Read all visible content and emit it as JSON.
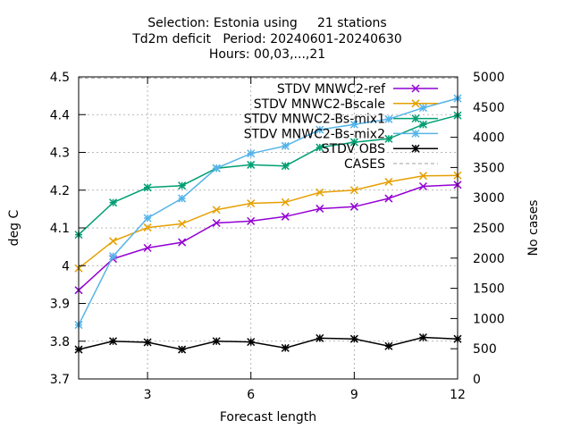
{
  "chart_data": {
    "type": "line",
    "title_lines": [
      "Selection: Estonia using     21 stations",
      "Td2m deficit   Period: 20240601-20240630",
      "Hours: 00,03,...,21"
    ],
    "xlabel": "Forecast length",
    "ylabel": "deg C",
    "y2label": "No cases",
    "xlim": [
      1,
      12
    ],
    "ylim": [
      3.7,
      4.5
    ],
    "y2lim": [
      0,
      5000
    ],
    "x_ticks": [
      3,
      6,
      9,
      12
    ],
    "y_ticks": [
      3.7,
      3.8,
      3.9,
      4,
      4.1,
      4.2,
      4.3,
      4.4,
      4.5
    ],
    "y_tick_labels": [
      "3.7",
      "3.8",
      "3.9",
      "4",
      "4.1",
      "4.2",
      "4.3",
      "4.4",
      "4.5"
    ],
    "y2_ticks": [
      0,
      500,
      1000,
      1500,
      2000,
      2500,
      3000,
      3500,
      4000,
      4500,
      5000
    ],
    "grid": true,
    "legend_placement": "top-right",
    "x": [
      1,
      2,
      3,
      4,
      5,
      6,
      7,
      8,
      9,
      10,
      11,
      12
    ],
    "series": [
      {
        "name": "STDV MNWC2-ref",
        "color": "#9400d3",
        "marker": "cross",
        "values": [
          3.935,
          4.018,
          4.047,
          4.062,
          4.113,
          4.118,
          4.13,
          4.151,
          4.156,
          4.178,
          4.21,
          4.214
        ]
      },
      {
        "name": "STDV MNWC2-Bscale",
        "color": "#e69f00",
        "marker": "cross",
        "values": [
          3.993,
          4.065,
          4.101,
          4.111,
          4.148,
          4.165,
          4.168,
          4.194,
          4.2,
          4.222,
          4.238,
          4.239
        ]
      },
      {
        "name": "STDV MNWC2-Bs-mix1",
        "color": "#009e73",
        "marker": "star",
        "values": [
          4.082,
          4.167,
          4.207,
          4.212,
          4.258,
          4.267,
          4.264,
          4.313,
          4.327,
          4.336,
          4.374,
          4.398
        ]
      },
      {
        "name": "STDV MNWC2-Bs-mix2",
        "color": "#56b4e9",
        "marker": "star",
        "values": [
          3.843,
          4.025,
          4.126,
          4.178,
          4.258,
          4.297,
          4.317,
          4.36,
          4.374,
          4.388,
          4.418,
          4.443
        ]
      },
      {
        "name": "STDV OBS",
        "color": "#000000",
        "marker": "star",
        "values": [
          3.778,
          3.8,
          3.797,
          3.778,
          3.8,
          3.798,
          3.782,
          3.808,
          3.806,
          3.787,
          3.81,
          3.806
        ]
      },
      {
        "name": "CASES",
        "color": "#a0a0a0",
        "marker": "none",
        "dashed": true,
        "axis": "y2",
        "values": [
          4980,
          4980,
          4980,
          4980,
          4980,
          4980,
          4980,
          4980,
          4980,
          4980,
          4980,
          4980
        ]
      }
    ]
  }
}
